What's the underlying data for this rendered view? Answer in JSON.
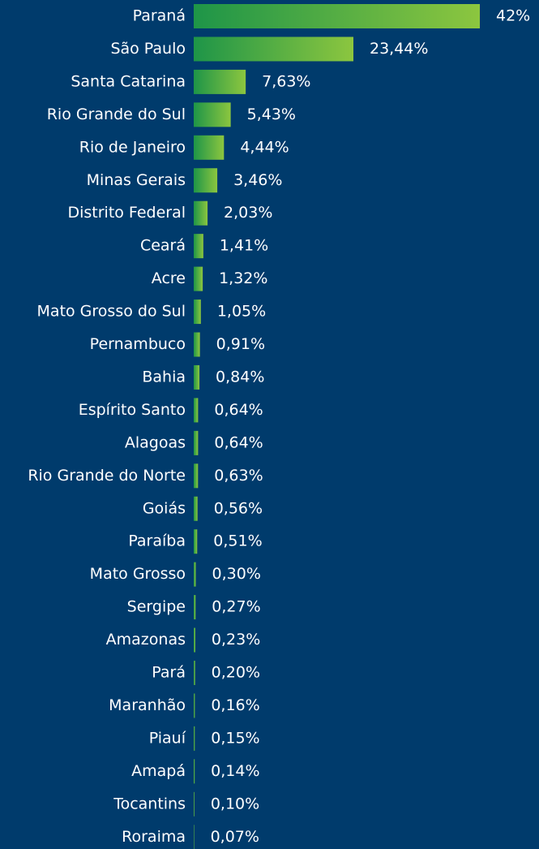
{
  "chart_data": {
    "type": "hbar",
    "categories": [
      "Paraná",
      "São Paulo",
      "Santa Catarina",
      "Rio Grande do Sul",
      "Rio de Janeiro",
      "Minas Gerais",
      "Distrito Federal",
      "Ceará",
      "Acre",
      "Mato Grosso do Sul",
      "Pernambuco",
      "Bahia",
      "Espírito Santo",
      "Alagoas",
      "Rio Grande do Norte",
      "Goiás",
      "Paraíba",
      "Mato Grosso",
      "Sergipe",
      "Amazonas",
      "Pará",
      "Maranhão",
      "Piauí",
      "Amapá",
      "Tocantins",
      "Roraima"
    ],
    "values": [
      42,
      23.44,
      7.63,
      5.43,
      4.44,
      3.46,
      2.03,
      1.41,
      1.32,
      1.05,
      0.91,
      0.84,
      0.64,
      0.64,
      0.63,
      0.56,
      0.51,
      0.3,
      0.27,
      0.23,
      0.2,
      0.16,
      0.15,
      0.14,
      0.1,
      0.07
    ],
    "value_labels": [
      "42%",
      "23,44%",
      "7,63%",
      "5,43%",
      "4,44%",
      "3,46%",
      "2,03%",
      "1,41%",
      "1,32%",
      "1,05%",
      "0,91%",
      "0,84%",
      "0,64%",
      "0,64%",
      "0,63%",
      "0,56%",
      "0,51%",
      "0,30%",
      "0,27%",
      "0,23%",
      "0,20%",
      "0,16%",
      "0,15%",
      "0,14%",
      "0,10%",
      "0,07%"
    ],
    "xlim": [
      0,
      42
    ],
    "gradient": [
      "#1e9548",
      "#8cc63f"
    ]
  }
}
